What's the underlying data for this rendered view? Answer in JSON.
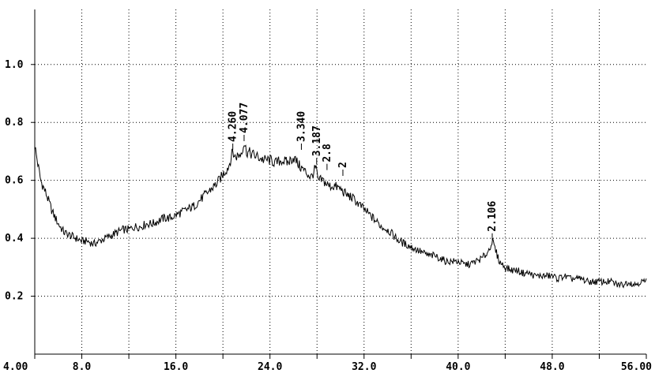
{
  "chart_data": {
    "type": "line",
    "title": "",
    "xlabel": "",
    "ylabel": "",
    "xlim": [
      4.0,
      56.0
    ],
    "ylim": [
      0.0,
      1.19
    ],
    "grid": true,
    "x_ticks": [
      {
        "value": 4.0,
        "label": "4.00"
      },
      {
        "value": 8.0,
        "label": "8.0"
      },
      {
        "value": 16.0,
        "label": "16.0"
      },
      {
        "value": 24.0,
        "label": "24.0"
      },
      {
        "value": 32.0,
        "label": "32.0"
      },
      {
        "value": 40.0,
        "label": "40.0"
      },
      {
        "value": 48.0,
        "label": "48.0"
      },
      {
        "value": 56.0,
        "label": "56.00"
      }
    ],
    "x_minor_ticks": [
      12.0,
      20.0,
      28.0,
      36.0,
      44.0,
      52.0
    ],
    "y_ticks": [
      {
        "value": 0.2,
        "label": "0.2"
      },
      {
        "value": 0.4,
        "label": "0.4"
      },
      {
        "value": 0.6,
        "label": "0.6"
      },
      {
        "value": 0.8,
        "label": "0.8"
      },
      {
        "value": 1.0,
        "label": "1.0"
      }
    ],
    "series": [
      {
        "color": "#000000",
        "x": [
          4.0,
          4.5,
          5.0,
          5.5,
          6.0,
          6.5,
          7.0,
          7.5,
          8.0,
          8.5,
          9.0,
          9.5,
          10.0,
          10.5,
          11.0,
          11.5,
          12.0,
          12.5,
          13.0,
          13.5,
          14.0,
          14.5,
          15.0,
          15.5,
          16.0,
          16.5,
          17.0,
          17.5,
          18.0,
          18.5,
          19.0,
          19.5,
          20.0,
          20.5,
          20.84,
          21.0,
          21.5,
          21.8,
          22.0,
          22.5,
          23.0,
          23.5,
          24.0,
          24.5,
          25.0,
          25.5,
          26.0,
          26.5,
          27.0,
          27.5,
          27.97,
          28.0,
          28.5,
          29.0,
          29.5,
          30.0,
          30.5,
          31.0,
          31.5,
          32.0,
          32.5,
          33.0,
          33.5,
          34.0,
          34.5,
          35.0,
          35.5,
          36.0,
          36.5,
          37.0,
          37.5,
          38.0,
          38.5,
          39.0,
          39.5,
          40.0,
          40.5,
          41.0,
          41.5,
          42.0,
          42.5,
          42.9,
          43.0,
          43.5,
          44.0,
          44.5,
          45.0,
          45.5,
          46.0,
          46.5,
          47.0,
          47.5,
          48.0,
          48.5,
          49.0,
          49.5,
          50.0,
          50.5,
          51.0,
          51.5,
          52.0,
          52.5,
          53.0,
          53.5,
          54.0,
          54.5,
          55.0,
          55.5,
          56.0
        ],
        "y": [
          0.72,
          0.6,
          0.55,
          0.49,
          0.45,
          0.42,
          0.41,
          0.4,
          0.39,
          0.39,
          0.38,
          0.39,
          0.4,
          0.41,
          0.42,
          0.43,
          0.43,
          0.44,
          0.44,
          0.45,
          0.45,
          0.46,
          0.47,
          0.47,
          0.48,
          0.49,
          0.5,
          0.51,
          0.53,
          0.55,
          0.57,
          0.59,
          0.62,
          0.65,
          0.7,
          0.68,
          0.69,
          0.73,
          0.7,
          0.69,
          0.68,
          0.67,
          0.67,
          0.66,
          0.67,
          0.66,
          0.68,
          0.65,
          0.63,
          0.61,
          0.65,
          0.6,
          0.6,
          0.58,
          0.58,
          0.57,
          0.55,
          0.54,
          0.52,
          0.5,
          0.48,
          0.46,
          0.44,
          0.43,
          0.41,
          0.39,
          0.38,
          0.37,
          0.36,
          0.35,
          0.34,
          0.34,
          0.33,
          0.32,
          0.32,
          0.32,
          0.31,
          0.31,
          0.32,
          0.33,
          0.35,
          0.39,
          0.38,
          0.32,
          0.3,
          0.29,
          0.29,
          0.28,
          0.28,
          0.27,
          0.27,
          0.27,
          0.27,
          0.26,
          0.27,
          0.26,
          0.26,
          0.26,
          0.25,
          0.25,
          0.25,
          0.25,
          0.25,
          0.24,
          0.24,
          0.25,
          0.24,
          0.25,
          0.25
        ]
      }
    ],
    "annotations": [
      {
        "x": 20.84,
        "y": 0.7,
        "text": "4.260"
      },
      {
        "x": 21.8,
        "y": 0.73,
        "text": "4.077"
      },
      {
        "x": 26.67,
        "y": 0.7,
        "text": "3.340"
      },
      {
        "x": 27.97,
        "y": 0.65,
        "text": "3.187"
      },
      {
        "x": 28.85,
        "y": 0.63,
        "text": "2.8"
      },
      {
        "x": 30.2,
        "y": 0.61,
        "text": "2"
      },
      {
        "x": 42.9,
        "y": 0.39,
        "text": "2.106"
      }
    ]
  }
}
